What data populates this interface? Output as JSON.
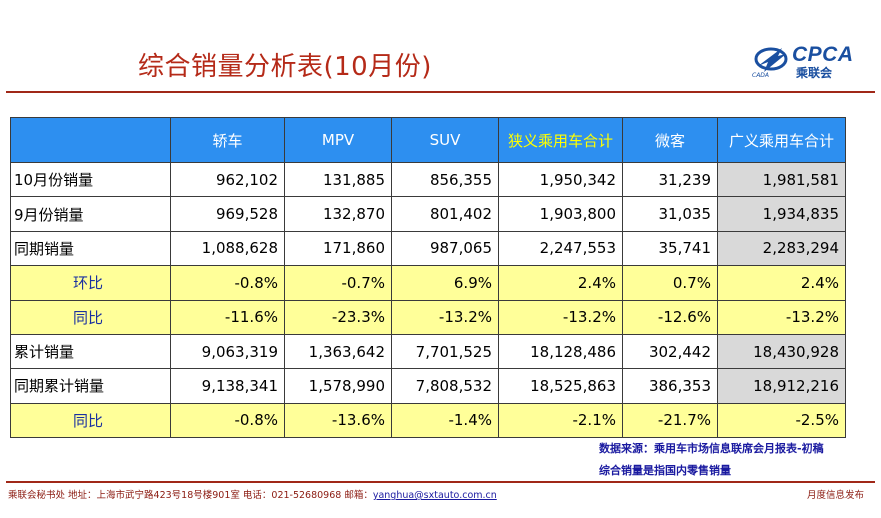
{
  "title": "综合销量分析表(10月份)",
  "logo": {
    "text": "CPCA",
    "sub": "乘联会",
    "small": "CADA"
  },
  "table": {
    "headers": [
      "",
      "轿车",
      "MPV",
      "SUV",
      "狭义乘用车合计",
      "微客",
      "广义乘用车合计"
    ],
    "rows": [
      {
        "label": "10月份销量",
        "values": [
          "962,102",
          "131,885",
          "856,355",
          "1,950,342",
          "31,239",
          "1,981,581"
        ]
      },
      {
        "label": "9月份销量",
        "values": [
          "969,528",
          "132,870",
          "801,402",
          "1,903,800",
          "31,035",
          "1,934,835"
        ]
      },
      {
        "label": "同期销量",
        "values": [
          "1,088,628",
          "171,860",
          "987,065",
          "2,247,553",
          "35,741",
          "2,283,294"
        ]
      },
      {
        "label": "环比",
        "values": [
          "-0.8%",
          "-0.7%",
          "6.9%",
          "2.4%",
          "0.7%",
          "2.4%"
        ]
      },
      {
        "label": "同比",
        "values": [
          "-11.6%",
          "-23.3%",
          "-13.2%",
          "-13.2%",
          "-12.6%",
          "-13.2%"
        ]
      },
      {
        "label": "累计销量",
        "values": [
          "9,063,319",
          "1,363,642",
          "7,701,525",
          "18,128,486",
          "302,442",
          "18,430,928"
        ]
      },
      {
        "label": "同期累计销量",
        "values": [
          "9,138,341",
          "1,578,990",
          "7,808,532",
          "18,525,863",
          "386,353",
          "18,912,216"
        ]
      },
      {
        "label": "同比",
        "values": [
          "-0.8%",
          "-13.6%",
          "-1.4%",
          "-2.1%",
          "-21.7%",
          "-2.5%"
        ]
      }
    ]
  },
  "notes": {
    "source": "数据来源：乘用车市场信息联席会月报表-初稿",
    "scope": "综合销量是指国内零售销量"
  },
  "footer": {
    "left": "乘联会秘书处  地址：上海市武宁路423号18号楼901室  电话：021-52680968  邮箱：",
    "email": "yanghua@sxtauto.com.cn",
    "right": "月度信息发布"
  },
  "colors": {
    "header_bg": "#2d8ff0",
    "header_highlight": "#ffff00",
    "ratio_row_bg": "#ffff99",
    "last_col_bg": "#d9d9d9",
    "title": "#b52a18",
    "rule": "#a02818"
  }
}
